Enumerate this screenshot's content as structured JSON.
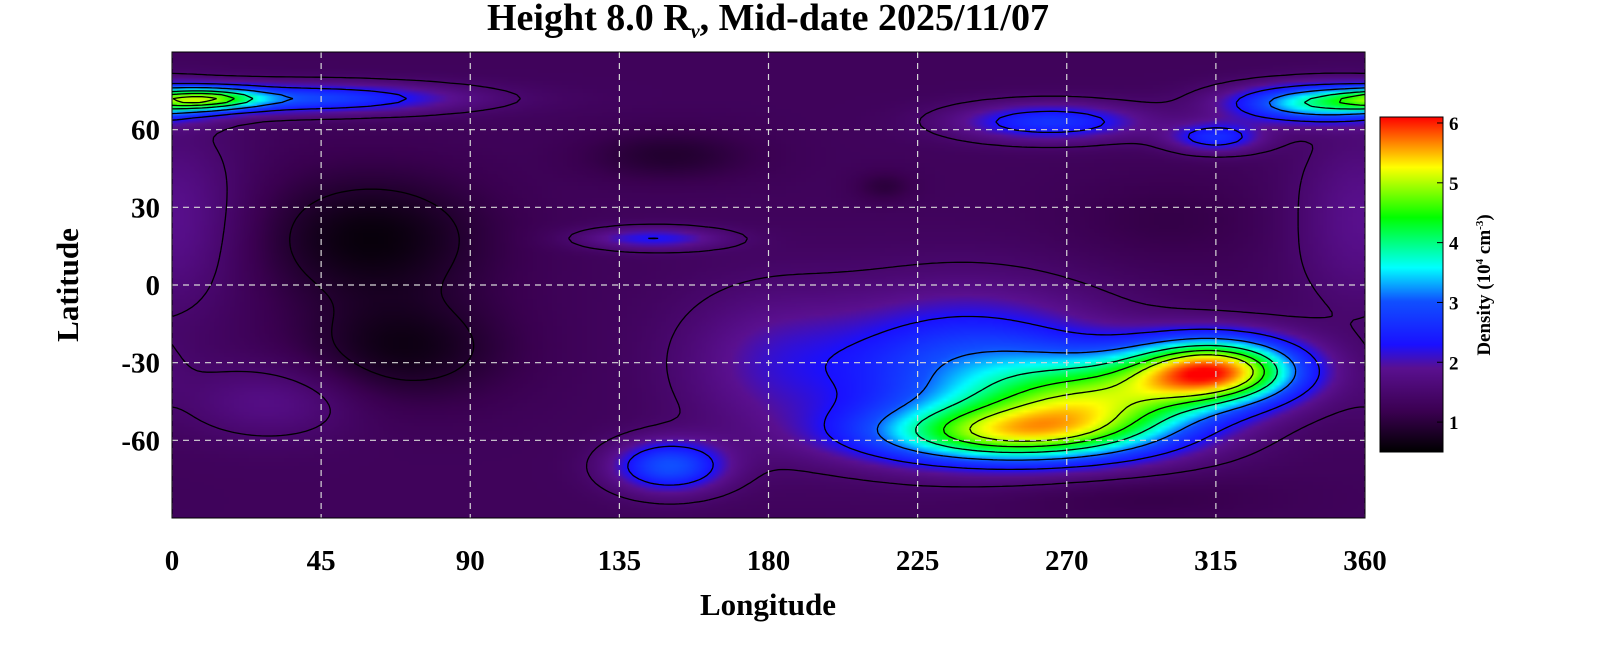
{
  "chart_data": {
    "type": "heatmap",
    "title": {
      "prefix": "Height 8.0 R",
      "subscript": "v",
      "suffix": ", Mid-date 2025/11/07"
    },
    "xlabel": "Longitude",
    "ylabel": "Latitude",
    "xlim": [
      0,
      360
    ],
    "ylim": [
      -90,
      90
    ],
    "xticks": [
      "0",
      "45",
      "90",
      "135",
      "180",
      "225",
      "270",
      "315",
      "360"
    ],
    "yticks": [
      "60",
      "30",
      "0",
      "-30",
      "-60"
    ],
    "grid": true,
    "contours": true,
    "colorbar": {
      "label_prefix": "Density (10",
      "label_exp1": "4",
      "label_mid": " cm",
      "label_exp2": "-3",
      "label_suffix": ")",
      "range": [
        0.5,
        6.1
      ],
      "ticks": [
        "6",
        "5",
        "4",
        "3",
        "2",
        "1"
      ],
      "position": "right",
      "colors": [
        "#000000",
        "#3a0050",
        "#5a1090",
        "#1a10ff",
        "#00ffff",
        "#00ff00",
        "#ffff00",
        "#ff0000"
      ]
    },
    "background_density": 1.3,
    "features": [
      {
        "lon": 60,
        "lat": 18,
        "density": 0.6,
        "slon": 25,
        "slat": 18
      },
      {
        "lon": 70,
        "lat": -25,
        "density": 0.7,
        "slon": 22,
        "slat": 14
      },
      {
        "lon": 150,
        "lat": 50,
        "density": 0.9,
        "slon": 18,
        "slat": 7
      },
      {
        "lon": 215,
        "lat": 38,
        "density": 1.0,
        "slon": 6,
        "slat": 4
      },
      {
        "lon": 300,
        "lat": 25,
        "density": 1.1,
        "slon": 22,
        "slat": 12
      },
      {
        "lon": 290,
        "lat": -82,
        "density": 1.1,
        "slon": 30,
        "slat": 6
      },
      {
        "lon": 40,
        "lat": 72,
        "density": 2.9,
        "slon": 32,
        "slat": 4
      },
      {
        "lon": 10,
        "lat": 72,
        "density": 3.3,
        "slon": 12,
        "slat": 3
      },
      {
        "lon": 345,
        "lat": 70,
        "density": 3.5,
        "slon": 18,
        "slat": 5
      },
      {
        "lon": 265,
        "lat": 63,
        "density": 2.7,
        "slon": 20,
        "slat": 5
      },
      {
        "lon": 315,
        "lat": 57,
        "density": 2.6,
        "slon": 10,
        "slat": 4
      },
      {
        "lon": 145,
        "lat": 18,
        "density": 2.3,
        "slon": 15,
        "slat": 3
      },
      {
        "lon": 150,
        "lat": -70,
        "density": 3.0,
        "slon": 12,
        "slat": 7
      },
      {
        "lon": 240,
        "lat": -32,
        "density": 2.9,
        "slon": 30,
        "slat": 20
      },
      {
        "lon": 250,
        "lat": -58,
        "density": 3.9,
        "slon": 30,
        "slat": 8
      },
      {
        "lon": 280,
        "lat": -45,
        "density": 4.0,
        "slon": 25,
        "slat": 12
      },
      {
        "lon": 315,
        "lat": -33,
        "density": 5.4,
        "slon": 18,
        "slat": 9
      },
      {
        "lon": 30,
        "lat": -45,
        "density": 1.8,
        "slon": 18,
        "slat": 10
      },
      {
        "lon": 0,
        "lat": 25,
        "density": 1.9,
        "slon": 15,
        "slat": 25
      },
      {
        "lon": 180,
        "lat": -30,
        "density": 1.9,
        "slon": 20,
        "slat": 20
      }
    ],
    "contour_levels": [
      0.9,
      1.5,
      2.3,
      3.1,
      3.9,
      4.5,
      5.0
    ]
  }
}
